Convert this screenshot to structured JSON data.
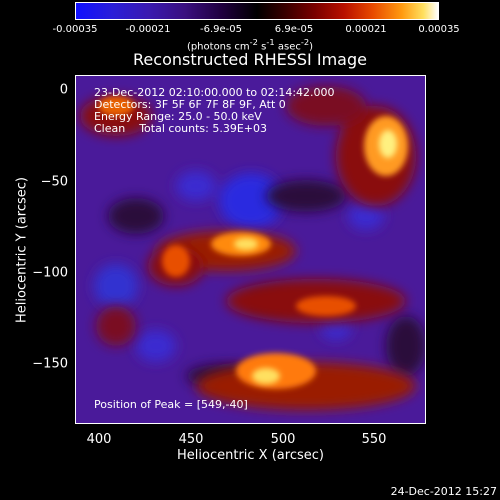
{
  "colorbar": {
    "ticks": [
      "-0.00035",
      "-0.00021",
      "-6.9e-05",
      "6.9e-05",
      "0.00021",
      "0.00035"
    ],
    "unit_main": "(photons cm",
    "unit_sup1": "-2",
    "unit_mid": " s",
    "unit_sup2": "-1",
    "unit_end": " asec",
    "unit_sup3": "-2",
    "unit_close": ")"
  },
  "title": "Reconstructed RHESSI Image",
  "info": {
    "line1": "23-Dec-2012 02:10:00.000 to 02:14:42.000",
    "line2": "Detectors: 3F 5F 6F 7F 8F 9F, Att 0",
    "line3": "Energy Range: 25.0 - 50.0 keV",
    "line4": "Clean    Total counts: 5.39E+03",
    "peak": "Position of Peak = [549,-40]"
  },
  "axes": {
    "xlabel": "Heliocentric X (arcsec)",
    "ylabel": "Heliocentric Y (arcsec)",
    "xticks": [
      "400",
      "450",
      "500",
      "550"
    ],
    "yticks": [
      "0",
      "−50",
      "−100",
      "−150"
    ]
  },
  "timestamp": "24-Dec-2012 15:27",
  "colors": {
    "background": "#000000",
    "text": "#ffffff",
    "image_base": "#4a1a9a"
  }
}
